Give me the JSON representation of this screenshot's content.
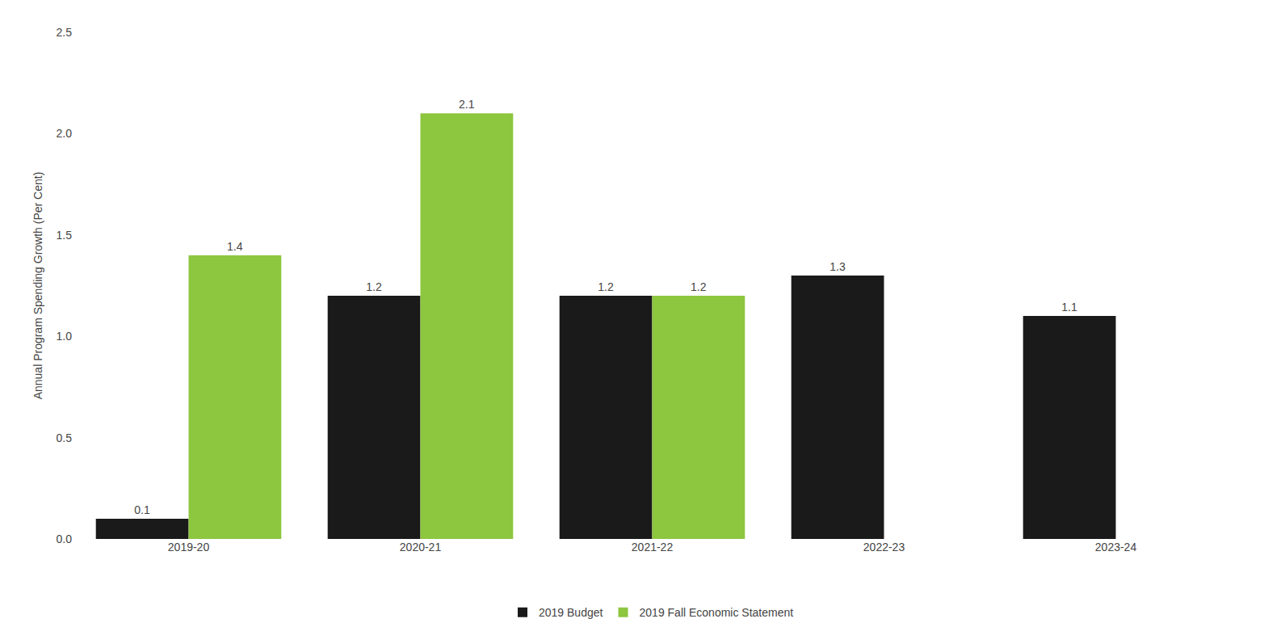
{
  "chart_data": {
    "type": "bar",
    "categories": [
      "2019-20",
      "2020-21",
      "2021-22",
      "2022-23",
      "2023-24"
    ],
    "series": [
      {
        "name": "2019 Budget",
        "color": "#1a1a1a",
        "values": [
          0.1,
          1.2,
          1.2,
          1.3,
          1.1
        ]
      },
      {
        "name": "2019 Fall Economic Statement",
        "color": "#8dc63f",
        "values": [
          1.4,
          2.1,
          1.2,
          null,
          null
        ]
      }
    ],
    "ylabel": "Annual Program Spending Growth (Per Cent)",
    "ylim": [
      0,
      2.5
    ],
    "yticks": [
      {
        "value": 0,
        "label": "0.0"
      },
      0.5,
      {
        "value": 1,
        "label": "1.0"
      },
      1.5,
      {
        "value": 2,
        "label": "2.0"
      },
      2.5
    ],
    "grid": false,
    "legend": "bottom",
    "data_labels": true
  }
}
